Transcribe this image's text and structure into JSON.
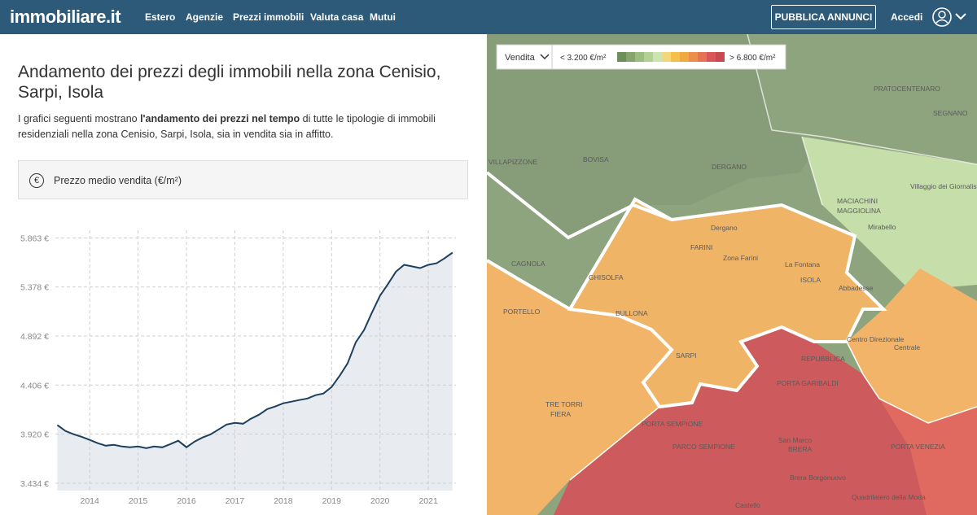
{
  "nav": {
    "logo": "immobiliare.it",
    "links": [
      "Estero",
      "Agenzie",
      "Prezzi immobili",
      "Valuta casa",
      "Mutui"
    ],
    "cta": "PUBBLICA ANNUNCI",
    "login": "Accedi"
  },
  "header": {
    "title": "Andamento dei prezzi degli immobili nella zona Cenisio, Sarpi, Isola",
    "description": [
      "I grafici seguenti mostrano ",
      "l'andamento dei prezzi nel tempo",
      " di tutte le tipologie di immobili residenziali nella zona Cenisio, Sarpi, Isola, sia in vendita sia in affitto."
    ]
  },
  "selector": {
    "icon": "€",
    "label": "Prezzo medio vendita (€/m²)"
  },
  "chart_data": {
    "type": "line",
    "series": [
      {
        "color": "#1e3f5c",
        "fill": "#e8ecf1",
        "x": [
          2013.33,
          2013.5,
          2013.67,
          2013.83,
          2014,
          2014.17,
          2014.33,
          2014.5,
          2014.67,
          2014.83,
          2015,
          2015.17,
          2015.33,
          2015.5,
          2015.67,
          2015.83,
          2016,
          2016.17,
          2016.33,
          2016.5,
          2016.67,
          2016.83,
          2017,
          2017.17,
          2017.33,
          2017.5,
          2017.67,
          2017.83,
          2018,
          2018.17,
          2018.33,
          2018.5,
          2018.67,
          2018.83,
          2019,
          2019.17,
          2019.33,
          2019.5,
          2019.67,
          2019.83,
          2020,
          2020.17,
          2020.33,
          2020.5,
          2020.67,
          2020.83,
          2021,
          2021.17,
          2021.33,
          2021.5
        ],
        "values": [
          4010,
          3950,
          3918,
          3894,
          3862,
          3829,
          3805,
          3813,
          3797,
          3789,
          3797,
          3781,
          3797,
          3789,
          3821,
          3854,
          3790,
          3846,
          3886,
          3918,
          3967,
          4015,
          4031,
          4023,
          4072,
          4112,
          4168,
          4193,
          4225,
          4241,
          4257,
          4273,
          4306,
          4322,
          4386,
          4500,
          4620,
          4830,
          4950,
          5120,
          5290,
          5410,
          5530,
          5597,
          5581,
          5565,
          5597,
          5613,
          5660,
          5718
        ]
      }
    ],
    "xlim": [
      2013.29,
      2021.57
    ],
    "xticks": [
      2014,
      2015,
      2016,
      2017,
      2018,
      2019,
      2020,
      2021
    ],
    "ylim": [
      3360,
      5940
    ],
    "yticks": [
      {
        "value": 5863,
        "label": "5.863 €"
      },
      {
        "value": 5378,
        "label": "5.378 €"
      },
      {
        "value": 4892,
        "label": "4.892 €"
      },
      {
        "value": 4406,
        "label": "4.406 €"
      },
      {
        "value": 3920,
        "label": "3.920 €"
      },
      {
        "value": 3434,
        "label": "3.434 €"
      }
    ],
    "grid": true
  },
  "map": {
    "mode": "Vendita",
    "legend_min": "< 3.200 €/m²",
    "legend_max": "> 6.800 €/m²",
    "legend_colors": [
      "#6f8f5a",
      "#86a56c",
      "#9bbd80",
      "#b3d197",
      "#cde3b0",
      "#f3d77b",
      "#f5c04a",
      "#f0a840",
      "#ec8f4a",
      "#e57355",
      "#d9575a",
      "#c84a4e"
    ],
    "labels": [
      "PRATOCENTENARO",
      "SEGNANO",
      "BOVISA",
      "DERGANO",
      "VILLAPIZZONE",
      "Villaggio dei Giornalisti",
      "MACIACHINI",
      "MAGGIOLINA",
      "Mirabello",
      "Dergano",
      "FARINI",
      "Zona Farini",
      "La Fontana",
      "ISOLA",
      "Abbadesse",
      "CAGNOLA",
      "GHISOLFA",
      "BULLONA",
      "PORTELLO",
      "SARPI",
      "Centro Direzionale",
      "Centrale",
      "REPUBBLICA",
      "PORTA GARIBALDI",
      "TRE TORRI",
      "FIERA",
      "PORTA SEMPIONE",
      "PARCO SEMPIONE",
      "San Marco",
      "BRERA",
      "Castello",
      "Quadrilatero della Moda",
      "PORTA VENEZIA",
      "Brera Borgonuovo"
    ]
  }
}
